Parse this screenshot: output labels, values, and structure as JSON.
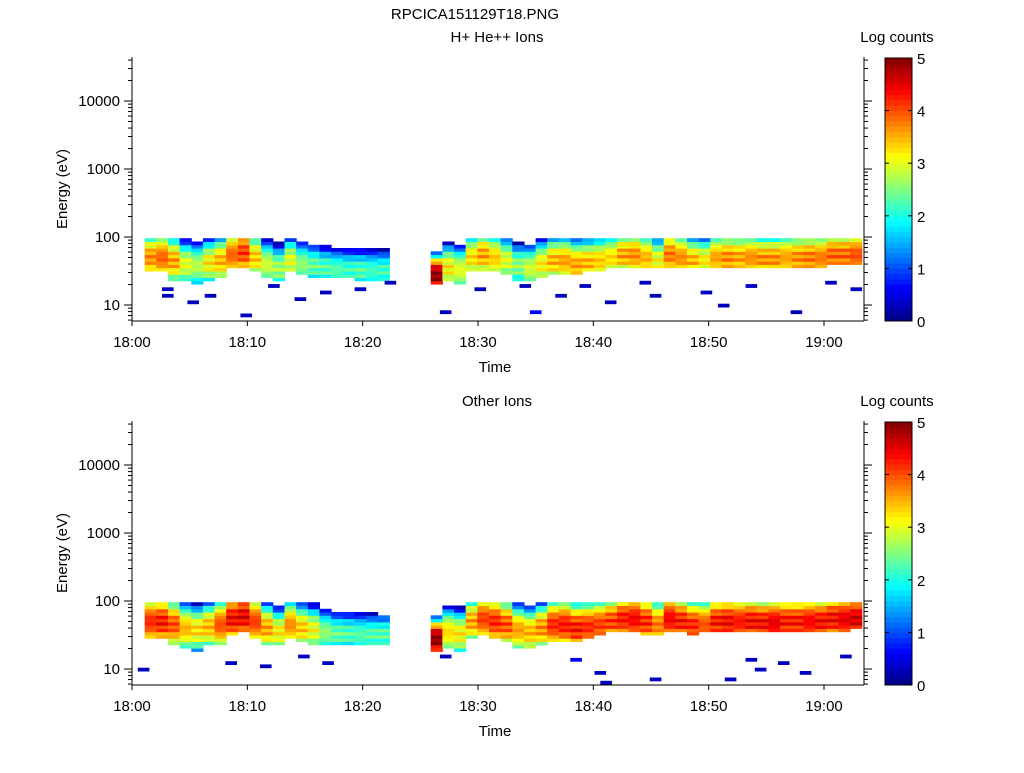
{
  "title": "RPCICA151129T18.PNG",
  "chart_data": [
    {
      "type": "heatmap",
      "title": "H+ He++ Ions",
      "xlabel": "Time",
      "ylabel": "Energy (eV)",
      "x_ticks": [
        "18:00",
        "18:10",
        "18:20",
        "18:30",
        "18:40",
        "18:50",
        "19:00"
      ],
      "x_range_minutes_after_1800": [
        0,
        63.5
      ],
      "y_scale": "log",
      "y_ticks": [
        "10",
        "100",
        "1000",
        "10000"
      ],
      "y_range_eV": [
        5.8,
        44000
      ],
      "energy_range_eV": [
        6,
        96
      ],
      "n_energy_bins": 25,
      "column_step_minutes": 1.01,
      "colorbar": {
        "label": "Log counts",
        "ticks": [
          "0",
          "1",
          "2",
          "3",
          "4",
          "5"
        ],
        "range": [
          0,
          5
        ]
      },
      "segments": [
        {
          "start_minute": 1.1,
          "peak_log": [
            3.7,
            3.9,
            3.6,
            3.0,
            2.8,
            3.2,
            3.5,
            3.9,
            4.1,
            3.4,
            2.9,
            2.7,
            3.0,
            2.6,
            2.4,
            2.3,
            2.3,
            2.2,
            2.3,
            2.2,
            2.2
          ],
          "peak_eV": [
            50,
            50,
            45,
            40,
            38,
            42,
            45,
            55,
            60,
            50,
            40,
            35,
            45,
            40,
            38,
            35,
            33,
            33,
            32,
            32,
            32
          ],
          "low_eV": [
            30,
            30,
            24,
            22,
            20,
            24,
            26,
            34,
            36,
            30,
            26,
            24,
            30,
            28,
            26,
            25,
            25,
            25,
            24,
            24,
            24
          ]
        },
        {
          "start_minute": 25.9,
          "peak_log": [
            5.0,
            3.2,
            3.0,
            3.3,
            3.6,
            3.4,
            3.0,
            2.6,
            2.9,
            3.2,
            3.5,
            3.6,
            3.6,
            3.5,
            3.4,
            3.3,
            3.6,
            3.7,
            3.5,
            3.1,
            3.8,
            3.7,
            3.5,
            3.2,
            3.6,
            3.7,
            3.6,
            3.7,
            3.7,
            3.7,
            3.6,
            3.7,
            3.8,
            3.8,
            3.9,
            3.9,
            4.0
          ],
          "peak_eV": [
            28,
            35,
            33,
            50,
            55,
            50,
            45,
            38,
            35,
            40,
            45,
            45,
            40,
            42,
            45,
            50,
            55,
            55,
            50,
            45,
            55,
            50,
            45,
            45,
            50,
            50,
            50,
            50,
            48,
            48,
            50,
            50,
            50,
            50,
            55,
            55,
            55
          ],
          "low_eV": [
            20,
            22,
            20,
            30,
            32,
            30,
            28,
            22,
            22,
            26,
            28,
            28,
            28,
            30,
            32,
            36,
            36,
            36,
            34,
            34,
            36,
            36,
            34,
            36,
            36,
            36,
            36,
            36,
            36,
            36,
            36,
            36,
            36,
            36,
            38,
            38,
            40
          ]
        }
      ],
      "sparse_points": [
        [
          2.6,
          16.6,
          0.3
        ],
        [
          2.6,
          13.1,
          0.3
        ],
        [
          4.8,
          10.7,
          0.3
        ],
        [
          6.3,
          14.0,
          0.3
        ],
        [
          9.4,
          7.1,
          0.3
        ],
        [
          11.8,
          19.7,
          0.3
        ],
        [
          14.1,
          11.8,
          0.3
        ],
        [
          16.3,
          15.0,
          0.3
        ],
        [
          19.3,
          16.6,
          0.3
        ],
        [
          21.9,
          21.8,
          0.3
        ],
        [
          26.7,
          7.6,
          0.3
        ],
        [
          29.7,
          16.6,
          0.3
        ],
        [
          33.6,
          19.7,
          0.3
        ],
        [
          34.5,
          7.9,
          0.6
        ],
        [
          36.7,
          14.0,
          0.3
        ],
        [
          38.8,
          19.7,
          0.3
        ],
        [
          41.0,
          11.1,
          0.3
        ],
        [
          44.0,
          21.1,
          0.3
        ],
        [
          44.9,
          14.0,
          0.3
        ],
        [
          49.3,
          15.5,
          0.3
        ],
        [
          50.8,
          10.0,
          0.3
        ],
        [
          53.2,
          19.7,
          0.3
        ],
        [
          57.1,
          7.6,
          0.3
        ],
        [
          60.1,
          21.8,
          0.3
        ],
        [
          62.3,
          16.6,
          0.3
        ]
      ]
    },
    {
      "type": "heatmap",
      "title": "Other Ions",
      "xlabel": "Time",
      "ylabel": "Energy (eV)",
      "x_ticks": [
        "18:00",
        "18:10",
        "18:20",
        "18:30",
        "18:40",
        "18:50",
        "19:00"
      ],
      "x_range_minutes_after_1800": [
        0,
        63.5
      ],
      "y_scale": "log",
      "y_ticks": [
        "10",
        "100",
        "1000",
        "10000"
      ],
      "y_range_eV": [
        5.8,
        44000
      ],
      "energy_range_eV": [
        6,
        96
      ],
      "n_energy_bins": 25,
      "column_step_minutes": 1.01,
      "colorbar": {
        "label": "Log counts",
        "ticks": [
          "0",
          "1",
          "2",
          "3",
          "4",
          "5"
        ],
        "range": [
          0,
          5
        ]
      },
      "segments": [
        {
          "start_minute": 1.1,
          "peak_log": [
            4.2,
            4.3,
            4.0,
            3.5,
            3.3,
            3.5,
            4.0,
            4.4,
            4.5,
            4.1,
            3.6,
            3.2,
            3.7,
            3.4,
            3.1,
            2.6,
            2.4,
            2.3,
            2.3,
            2.3,
            2.3
          ],
          "peak_eV": [
            50,
            50,
            45,
            40,
            38,
            42,
            45,
            55,
            60,
            50,
            40,
            35,
            45,
            40,
            38,
            35,
            33,
            33,
            32,
            32,
            32
          ],
          "low_eV": [
            28,
            28,
            22,
            20,
            19,
            22,
            24,
            32,
            34,
            28,
            24,
            22,
            28,
            26,
            24,
            24,
            24,
            24,
            23,
            23,
            23
          ]
        },
        {
          "start_minute": 25.9,
          "peak_log": [
            5.0,
            3.3,
            3.2,
            3.6,
            4.1,
            4.2,
            4.0,
            3.6,
            3.5,
            3.7,
            4.2,
            4.3,
            4.3,
            4.2,
            4.1,
            4.1,
            4.3,
            4.4,
            4.2,
            3.8,
            4.4,
            4.3,
            4.2,
            4.0,
            4.3,
            4.4,
            4.3,
            4.4,
            4.4,
            4.5,
            4.3,
            4.3,
            4.4,
            4.4,
            4.4,
            4.5,
            4.6
          ],
          "peak_eV": [
            28,
            35,
            33,
            50,
            55,
            50,
            45,
            38,
            35,
            40,
            45,
            45,
            40,
            42,
            45,
            50,
            55,
            55,
            50,
            45,
            55,
            50,
            45,
            45,
            50,
            50,
            50,
            50,
            48,
            48,
            50,
            50,
            50,
            50,
            55,
            55,
            55
          ],
          "low_eV": [
            19,
            20,
            18,
            28,
            30,
            28,
            26,
            20,
            20,
            24,
            26,
            26,
            26,
            28,
            30,
            34,
            34,
            34,
            32,
            32,
            34,
            34,
            32,
            34,
            34,
            34,
            34,
            34,
            34,
            34,
            34,
            34,
            34,
            34,
            36,
            36,
            38
          ]
        }
      ],
      "sparse_points": [
        [
          0.5,
          9.7,
          0.3
        ],
        [
          8.1,
          11.8,
          0.3
        ],
        [
          11.1,
          11.1,
          0.3
        ],
        [
          14.4,
          15.0,
          0.3
        ],
        [
          16.5,
          12.7,
          0.3
        ],
        [
          26.7,
          16.0,
          0.3
        ],
        [
          38.0,
          13.6,
          0.6
        ],
        [
          40.1,
          9.0,
          0.3
        ],
        [
          40.6,
          6.0,
          0.3
        ],
        [
          44.9,
          7.4,
          0.3
        ],
        [
          51.4,
          6.9,
          0.3
        ],
        [
          53.2,
          14.5,
          0.3
        ],
        [
          54.0,
          10.3,
          0.3
        ],
        [
          56.0,
          12.7,
          0.3
        ],
        [
          57.9,
          9.0,
          0.3
        ],
        [
          61.4,
          15.0,
          0.3
        ]
      ]
    }
  ]
}
